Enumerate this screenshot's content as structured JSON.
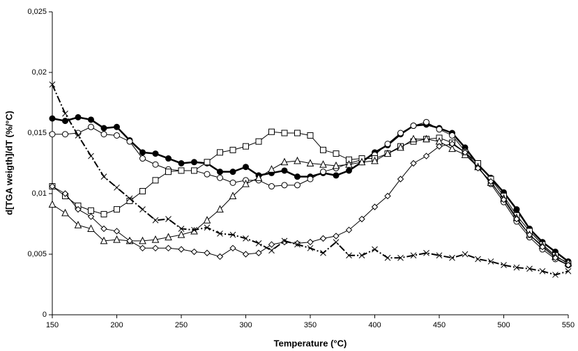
{
  "chart_data": {
    "type": "line",
    "x_label": "Temperature (°C)",
    "y_label": "d[TGA weigth]/dT (%/°C)",
    "x": [
      150,
      160,
      170,
      180,
      190,
      200,
      210,
      220,
      230,
      240,
      250,
      260,
      270,
      280,
      290,
      300,
      310,
      320,
      330,
      340,
      350,
      360,
      370,
      380,
      390,
      400,
      410,
      420,
      430,
      440,
      450,
      460,
      470,
      480,
      490,
      500,
      510,
      520,
      530,
      540,
      550
    ],
    "xlim": [
      150,
      550
    ],
    "xticks": [
      150,
      200,
      250,
      300,
      350,
      400,
      450,
      500,
      550
    ],
    "ylim": [
      0,
      0.025
    ],
    "yticks": [
      0,
      {
        "value": 0.005,
        "label": "0,005"
      },
      {
        "value": 0.01,
        "label": "0,01"
      },
      {
        "value": 0.015,
        "label": "0,015"
      },
      {
        "value": 0.02,
        "label": "0,02"
      },
      {
        "value": 0.025,
        "label": "0,025"
      }
    ],
    "series": [
      {
        "color": "#000000",
        "marker": "filled-circle",
        "line_width": 2.5,
        "dash": "none",
        "values": [
          0.0162,
          0.016,
          0.0163,
          0.0161,
          0.0154,
          0.0155,
          0.0144,
          0.0134,
          0.0133,
          0.0129,
          0.0125,
          0.0126,
          0.0125,
          0.0118,
          0.0118,
          0.0122,
          0.0115,
          0.0117,
          0.0119,
          0.0114,
          0.0114,
          0.0117,
          0.0115,
          0.0119,
          0.0126,
          0.0134,
          0.014,
          0.0149,
          0.0156,
          0.0157,
          0.0154,
          0.015,
          0.0138,
          0.0124,
          0.0113,
          0.0101,
          0.0087,
          0.0071,
          0.006,
          0.0052,
          0.0044
        ]
      },
      {
        "color": "#000000",
        "marker": "circle",
        "line_width": 1,
        "dash": "none",
        "values": [
          0.0149,
          0.0149,
          0.015,
          0.0155,
          0.0149,
          0.0148,
          0.0143,
          0.0129,
          0.0124,
          0.012,
          0.0119,
          0.0119,
          0.0116,
          0.0113,
          0.0109,
          0.0111,
          0.0111,
          0.0106,
          0.0107,
          0.0107,
          0.0112,
          0.0118,
          0.0121,
          0.0125,
          0.0128,
          0.0132,
          0.0141,
          0.015,
          0.0156,
          0.0159,
          0.0153,
          0.0148,
          0.0135,
          0.0122,
          0.0108,
          0.0093,
          0.0077,
          0.0064,
          0.0054,
          0.0046,
          0.0041
        ]
      },
      {
        "color": "#000000",
        "marker": "square",
        "line_width": 1,
        "dash": "none",
        "values": [
          0.0106,
          0.0098,
          0.009,
          0.0086,
          0.0083,
          0.0087,
          0.0094,
          0.0102,
          0.0111,
          0.0118,
          0.0119,
          0.0119,
          0.0126,
          0.0134,
          0.0136,
          0.0139,
          0.0143,
          0.0151,
          0.015,
          0.015,
          0.0148,
          0.0136,
          0.0133,
          0.0128,
          0.0129,
          0.0129,
          0.0133,
          0.0139,
          0.0143,
          0.0145,
          0.0146,
          0.0142,
          0.0134,
          0.0125,
          0.0112,
          0.0098,
          0.0082,
          0.0069,
          0.0058,
          0.0049,
          0.0042
        ]
      },
      {
        "color": "#000000",
        "marker": "triangle",
        "line_width": 1,
        "dash": "none",
        "values": [
          0.0091,
          0.0084,
          0.0074,
          0.0071,
          0.0061,
          0.0062,
          0.0061,
          0.0061,
          0.0062,
          0.0064,
          0.0066,
          0.0069,
          0.0078,
          0.0087,
          0.0098,
          0.0108,
          0.0113,
          0.012,
          0.0126,
          0.0127,
          0.0125,
          0.0124,
          0.0123,
          0.0124,
          0.0126,
          0.0127,
          0.0133,
          0.0138,
          0.0145,
          0.0145,
          0.0143,
          0.0137,
          0.0132,
          0.0122,
          0.0109,
          0.0096,
          0.008,
          0.0066,
          0.0057,
          0.0048,
          0.0043
        ]
      },
      {
        "color": "#000000",
        "marker": "diamond",
        "line_width": 1,
        "dash": "none",
        "values": [
          0.0106,
          0.01,
          0.0087,
          0.0081,
          0.0071,
          0.0069,
          0.0061,
          0.0055,
          0.0055,
          0.0055,
          0.0054,
          0.0052,
          0.0051,
          0.0048,
          0.0055,
          0.005,
          0.0051,
          0.0058,
          0.006,
          0.0059,
          0.006,
          0.0063,
          0.0065,
          0.007,
          0.0079,
          0.0089,
          0.0098,
          0.0112,
          0.0125,
          0.0131,
          0.0139,
          0.0141,
          0.0134,
          0.0121,
          0.011,
          0.0095,
          0.0079,
          0.0066,
          0.0056,
          0.0047,
          0.0041
        ]
      },
      {
        "color": "#000000",
        "marker": "cross",
        "line_width": 2,
        "dash": "10 3 2 3",
        "values": [
          0.019,
          0.0166,
          0.0148,
          0.0131,
          0.0114,
          0.0105,
          0.0096,
          0.0087,
          0.0078,
          0.0079,
          0.0071,
          0.007,
          0.0072,
          0.0067,
          0.0066,
          0.0063,
          0.0059,
          0.0053,
          0.0061,
          0.0058,
          0.0055,
          0.0051,
          0.006,
          0.0049,
          0.0049,
          0.0054,
          0.0047,
          0.0047,
          0.0049,
          0.0051,
          0.0049,
          0.0047,
          0.005,
          0.0046,
          0.0044,
          0.0041,
          0.0039,
          0.0038,
          0.0036,
          0.0033,
          0.0036
        ]
      }
    ]
  }
}
